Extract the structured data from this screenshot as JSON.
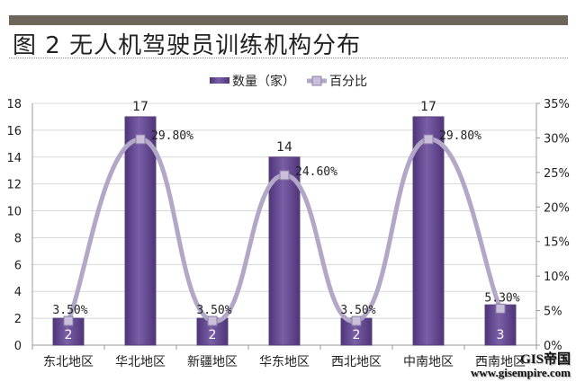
{
  "title": "图 2  无人机驾驶员训练机构分布",
  "watermark": {
    "line1": "GIS帝国",
    "line2": "www.gisempire.com"
  },
  "chart_data": {
    "type": "bar+line",
    "title": "图 2  无人机驾驶员训练机构分布",
    "categories": [
      "东北地区",
      "华北地区",
      "新疆地区",
      "华东地区",
      "西北地区",
      "中南地区",
      "西南地区"
    ],
    "series": [
      {
        "name": "数量（家）",
        "type": "bar",
        "axis": "left",
        "values": [
          2,
          17,
          2,
          14,
          2,
          17,
          3
        ],
        "labels": [
          "2",
          "17",
          "2",
          "14",
          "2",
          "17",
          "3"
        ],
        "color": "#6a4f96"
      },
      {
        "name": "百分比",
        "type": "line",
        "axis": "right",
        "values": [
          3.5,
          29.8,
          3.5,
          24.6,
          3.5,
          29.8,
          5.3
        ],
        "labels": [
          "3.50%",
          "29.80%",
          "3.50%",
          "24.60%",
          "3.50%",
          "29.80%",
          "5.30%"
        ],
        "color": "#b3a7c7"
      }
    ],
    "yleft": {
      "lim": [
        0,
        18
      ],
      "ticks": [
        "0",
        "2",
        "4",
        "6",
        "8",
        "10",
        "12",
        "14",
        "16",
        "18"
      ]
    },
    "yright": {
      "lim": [
        0,
        35
      ],
      "ticks": [
        "0%",
        "5%",
        "10%",
        "15%",
        "20%",
        "25%",
        "30%",
        "35%"
      ]
    },
    "grid": true,
    "legend": "top-center"
  }
}
